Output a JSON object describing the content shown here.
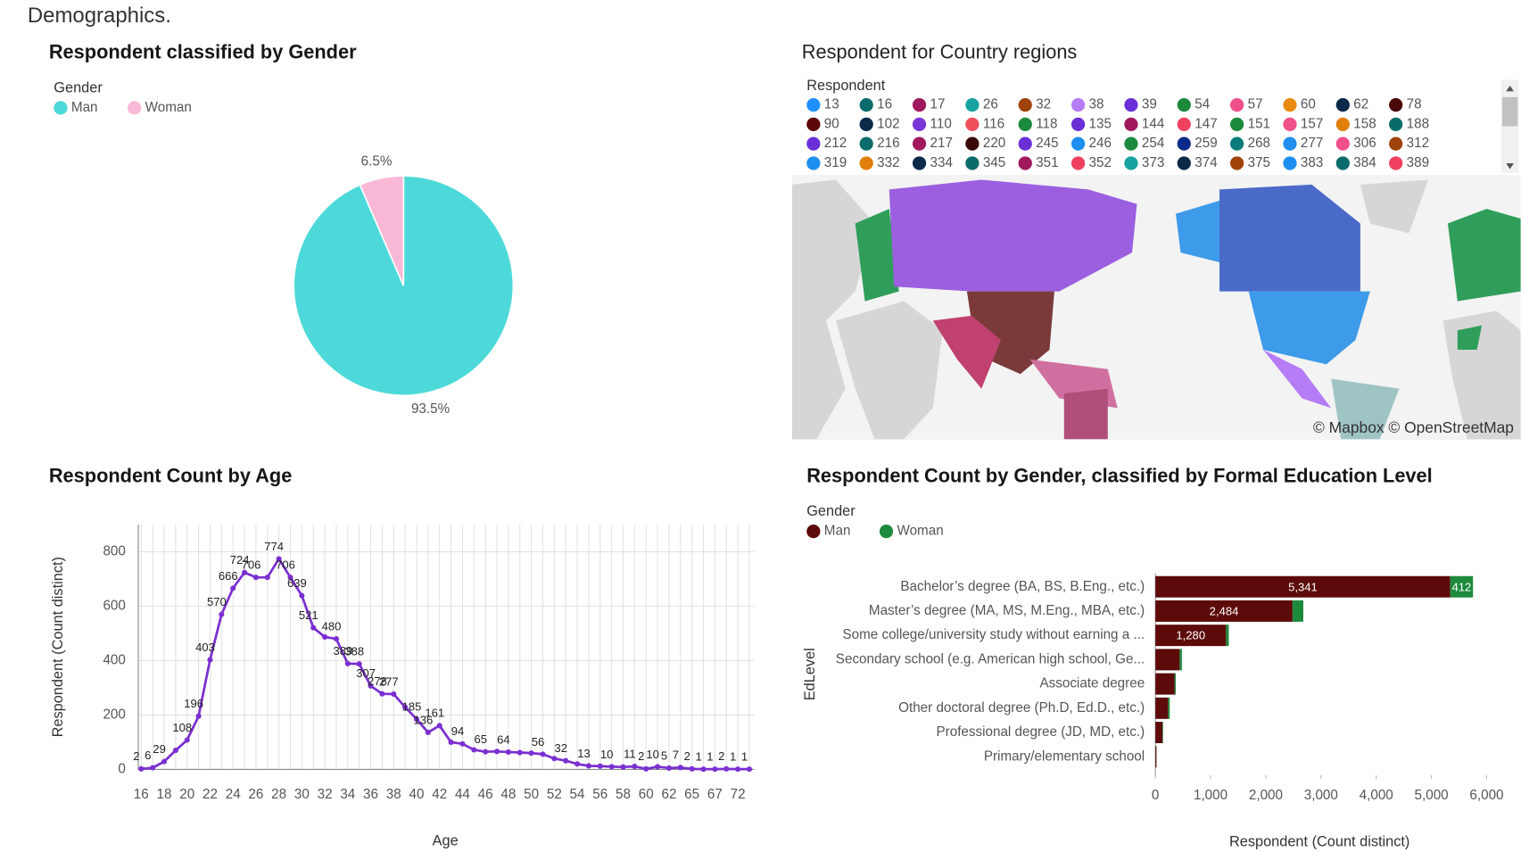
{
  "page": {
    "title": "Demographics."
  },
  "chart_data": [
    {
      "type": "pie",
      "title": "Respondent classified by Gender",
      "legend_title": "Gender",
      "categories": [
        "Man",
        "Woman"
      ],
      "values": [
        93.5,
        6.5
      ],
      "value_labels": [
        "93.5%",
        "6.5%"
      ],
      "colors": [
        "#4dd9d9",
        "#f9b8d6"
      ]
    },
    {
      "type": "map",
      "title": "Respondent for Country regions",
      "legend_title": "Respondent",
      "attribution": "© Mapbox © OpenStreetMap",
      "series": [
        {
          "name": 13,
          "color": "#1e90ff"
        },
        {
          "name": 16,
          "color": "#0a6b6b"
        },
        {
          "name": 17,
          "color": "#a0185e"
        },
        {
          "name": 26,
          "color": "#17a2a2"
        },
        {
          "name": 32,
          "color": "#a0430a"
        },
        {
          "name": 38,
          "color": "#b57cf5"
        },
        {
          "name": 39,
          "color": "#6a2fd6"
        },
        {
          "name": 54,
          "color": "#1c8a3c"
        },
        {
          "name": 57,
          "color": "#f0508a"
        },
        {
          "name": 60,
          "color": "#e88a10"
        },
        {
          "name": 62,
          "color": "#0b2a4a"
        },
        {
          "name": 78,
          "color": "#4a0808"
        },
        {
          "name": 90,
          "color": "#5c0808"
        },
        {
          "name": 102,
          "color": "#0b2a4a"
        },
        {
          "name": 110,
          "color": "#7a35d6"
        },
        {
          "name": 116,
          "color": "#f0505a"
        },
        {
          "name": 118,
          "color": "#1c8a3c"
        },
        {
          "name": 135,
          "color": "#6a2fd6"
        },
        {
          "name": 144,
          "color": "#a0185e"
        },
        {
          "name": 147,
          "color": "#f04060"
        },
        {
          "name": 151,
          "color": "#1c8a3c"
        },
        {
          "name": 157,
          "color": "#f0508a"
        },
        {
          "name": 158,
          "color": "#e0800a"
        },
        {
          "name": 188,
          "color": "#0a6b6b"
        },
        {
          "name": 212,
          "color": "#6a2fd6"
        },
        {
          "name": 216,
          "color": "#0a6b6b"
        },
        {
          "name": 217,
          "color": "#a0185e"
        },
        {
          "name": 220,
          "color": "#3a0808"
        },
        {
          "name": 245,
          "color": "#6a2fd6"
        },
        {
          "name": 246,
          "color": "#1e8ef0"
        },
        {
          "name": 254,
          "color": "#1c8a3c"
        },
        {
          "name": 259,
          "color": "#0b2a8a"
        },
        {
          "name": 268,
          "color": "#0a7b7b"
        },
        {
          "name": 277,
          "color": "#1e8ef0"
        },
        {
          "name": 306,
          "color": "#f0508a"
        },
        {
          "name": 312,
          "color": "#a0430a"
        },
        {
          "name": 319,
          "color": "#1e8ef0"
        },
        {
          "name": 332,
          "color": "#e0800a"
        },
        {
          "name": 334,
          "color": "#0b2a4a"
        },
        {
          "name": 345,
          "color": "#0a6b6b"
        },
        {
          "name": 351,
          "color": "#a0185e"
        },
        {
          "name": 352,
          "color": "#f04060"
        },
        {
          "name": 373,
          "color": "#17a2a2"
        },
        {
          "name": 374,
          "color": "#0b2a4a"
        },
        {
          "name": 375,
          "color": "#a0430a"
        },
        {
          "name": 383,
          "color": "#1e8ef0"
        },
        {
          "name": 384,
          "color": "#0a6b6b"
        },
        {
          "name": 389,
          "color": "#f04060"
        }
      ]
    },
    {
      "type": "line",
      "title": "Respondent Count by Age",
      "x_label": "Age",
      "y_label": "Respondent (Count distinct)",
      "categories": [
        "16",
        null,
        "18",
        null,
        "20",
        null,
        "22",
        null,
        "24",
        null,
        "26",
        null,
        "28",
        null,
        "30",
        null,
        "32",
        null,
        "34",
        null,
        "36",
        null,
        "38",
        null,
        "40",
        null,
        "42",
        null,
        "44",
        null,
        "46",
        null,
        "48",
        null,
        "50",
        null,
        "52",
        null,
        "54",
        null,
        "56",
        null,
        "58",
        null,
        "60",
        null,
        "62",
        null,
        "65",
        null,
        "67",
        null,
        "72",
        null
      ],
      "values": [
        2,
        6,
        29,
        70,
        108,
        196,
        403,
        570,
        666,
        724,
        706,
        706,
        774,
        706,
        639,
        521,
        487,
        480,
        389,
        388,
        307,
        278,
        277,
        229,
        185,
        136,
        161,
        100,
        94,
        72,
        65,
        66,
        64,
        62,
        60,
        56,
        40,
        32,
        20,
        13,
        12,
        10,
        9,
        11,
        2,
        10,
        5,
        7,
        2,
        1,
        1,
        2,
        1,
        1
      ],
      "value_labels": [
        "2",
        "6",
        "29",
        null,
        "108",
        "196",
        "403",
        "570",
        "666",
        "724",
        "706",
        null,
        "774",
        "706",
        "639",
        "521",
        null,
        "480",
        "389",
        "388",
        "307",
        "278",
        "277",
        null,
        "185",
        "136",
        "161",
        null,
        "94",
        null,
        "65",
        null,
        "64",
        null,
        null,
        "56",
        null,
        "32",
        null,
        "13",
        null,
        "10",
        null,
        "11",
        "2",
        "10",
        "5",
        "7",
        "2",
        "1",
        "1",
        "2",
        "1",
        "1"
      ],
      "color": "#7b2fd1",
      "ylim": [
        0,
        900
      ],
      "yticks": [
        0,
        200,
        400,
        600,
        800
      ],
      "grid": true
    },
    {
      "type": "bar",
      "orientation": "horizontal",
      "stacked": true,
      "title": "Respondent Count by Gender, classified by Formal Education Level",
      "legend_title": "Gender",
      "x_label": "Respondent (Count distinct)",
      "y_label": "EdLevel",
      "categories": [
        "Bachelor’s degree (BA, BS, B.Eng., etc.)",
        "Master’s degree (MA, MS, M.Eng., MBA, etc.)",
        "Some college/university study without earning a ...",
        "Secondary school (e.g. American high school, Ge...",
        "Associate degree",
        "Other doctoral degree (Ph.D, Ed.D., etc.)",
        "Professional degree (JD, MD, etc.)",
        "Primary/elementary school"
      ],
      "series": [
        {
          "name": "Man",
          "color": "#5c0a0a",
          "values": [
            5341,
            2484,
            1280,
            440,
            350,
            230,
            130,
            20
          ],
          "value_labels": [
            "5,341",
            "2,484",
            "1,280",
            null,
            null,
            null,
            null,
            null
          ]
        },
        {
          "name": "Woman",
          "color": "#1e8a3c",
          "values": [
            412,
            195,
            50,
            40,
            20,
            30,
            10,
            2
          ],
          "value_labels": [
            "412",
            null,
            null,
            null,
            null,
            null,
            null,
            null
          ]
        }
      ],
      "xlim": [
        0,
        6000
      ],
      "xticks": [
        0,
        {
          "value": 1000,
          "label": "1,000"
        },
        {
          "value": 2000,
          "label": "2,000"
        },
        {
          "value": 3000,
          "label": "3,000"
        },
        {
          "value": 4000,
          "label": "4,000"
        },
        {
          "value": 5000,
          "label": "5,000"
        },
        {
          "value": 6000,
          "label": "6,000"
        }
      ]
    }
  ]
}
